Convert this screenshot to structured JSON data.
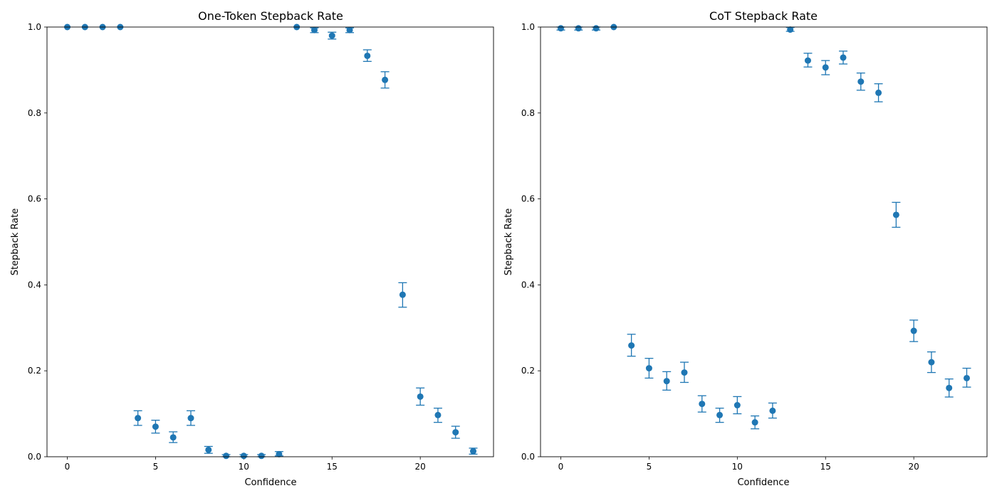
{
  "figure": {
    "background": "#ffffff",
    "marker_color": "#1f77b4"
  },
  "chart_data": [
    {
      "type": "scatter",
      "title": "One-Token Stepback Rate",
      "xlabel": "Confidence",
      "ylabel": "Stepback Rate",
      "xlim": [
        -1.15,
        24.15
      ],
      "ylim": [
        0,
        1
      ],
      "xticks": [
        0,
        5,
        10,
        15,
        20
      ],
      "yticks": [
        0.0,
        0.2,
        0.4,
        0.6,
        0.8,
        1.0
      ],
      "grid": false,
      "x": [
        0,
        1,
        2,
        3,
        4,
        5,
        6,
        7,
        8,
        9,
        10,
        11,
        12,
        13,
        14,
        15,
        16,
        17,
        18,
        19,
        20,
        21,
        22,
        23
      ],
      "y": [
        1.0,
        1.0,
        1.0,
        1.0,
        0.09,
        0.07,
        0.045,
        0.09,
        0.016,
        0.002,
        0.002,
        0.002,
        0.006,
        1.0,
        0.993,
        0.98,
        0.993,
        0.933,
        0.877,
        0.377,
        0.14,
        0.097,
        0.057,
        0.013
      ],
      "err_low": [
        1.0,
        1.0,
        1.0,
        1.0,
        0.073,
        0.055,
        0.033,
        0.073,
        0.008,
        0.0,
        0.0,
        0.0,
        0.002,
        1.0,
        0.987,
        0.972,
        0.987,
        0.92,
        0.858,
        0.348,
        0.12,
        0.08,
        0.043,
        0.006
      ],
      "err_high": [
        1.0,
        1.0,
        1.0,
        1.0,
        0.107,
        0.085,
        0.058,
        0.107,
        0.024,
        0.005,
        0.005,
        0.005,
        0.012,
        1.0,
        0.998,
        0.988,
        0.998,
        0.947,
        0.896,
        0.405,
        0.16,
        0.113,
        0.071,
        0.02
      ]
    },
    {
      "type": "scatter",
      "title": "CoT Stepback Rate",
      "xlabel": "Confidence",
      "ylabel": "Stepback Rate",
      "xlim": [
        -1.15,
        24.15
      ],
      "ylim": [
        0,
        1
      ],
      "xticks": [
        0,
        5,
        10,
        15,
        20
      ],
      "yticks": [
        0.0,
        0.2,
        0.4,
        0.6,
        0.8,
        1.0
      ],
      "grid": false,
      "x": [
        0,
        1,
        2,
        3,
        4,
        5,
        6,
        7,
        8,
        9,
        10,
        11,
        12,
        13,
        14,
        15,
        16,
        17,
        18,
        19,
        20,
        21,
        22,
        23
      ],
      "y": [
        0.997,
        0.997,
        0.997,
        1.0,
        0.259,
        0.206,
        0.176,
        0.196,
        0.123,
        0.097,
        0.12,
        0.08,
        0.107,
        0.994,
        0.922,
        0.906,
        0.929,
        0.873,
        0.847,
        0.563,
        0.293,
        0.22,
        0.16,
        0.183
      ],
      "err_low": [
        0.993,
        0.993,
        0.993,
        1.0,
        0.234,
        0.183,
        0.155,
        0.173,
        0.104,
        0.08,
        0.1,
        0.065,
        0.09,
        0.99,
        0.907,
        0.889,
        0.914,
        0.853,
        0.826,
        0.534,
        0.268,
        0.196,
        0.139,
        0.162
      ],
      "err_high": [
        1.0,
        1.0,
        1.0,
        1.0,
        0.285,
        0.229,
        0.198,
        0.22,
        0.142,
        0.113,
        0.14,
        0.095,
        0.125,
        0.999,
        0.939,
        0.922,
        0.944,
        0.893,
        0.868,
        0.592,
        0.318,
        0.244,
        0.181,
        0.206
      ]
    }
  ]
}
